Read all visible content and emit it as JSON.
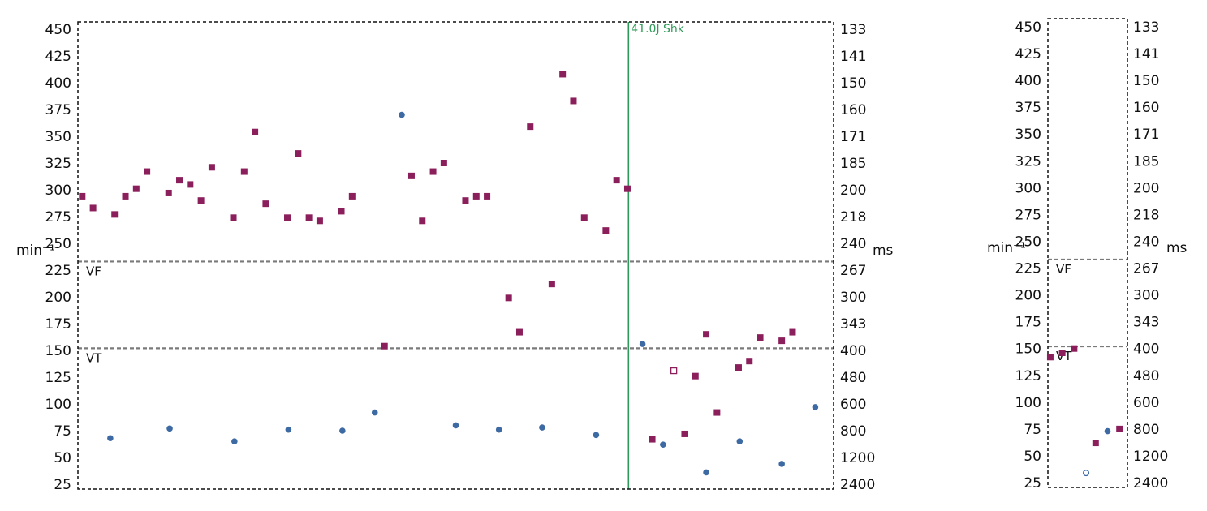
{
  "colors": {
    "vv": "#3d6aa3",
    "aa": "#8b1f5c",
    "shock": "#2e9a58",
    "zone": "#7a7a7a",
    "frame": "#111111"
  },
  "chart_data": [
    {
      "type": "scatter",
      "y_left_unit": "min⁻¹",
      "y_right_unit": "ms",
      "ylim": [
        20,
        456
      ],
      "y_left_ticks": [
        "450",
        "425",
        "400",
        "375",
        "350",
        "325",
        "300",
        "275",
        "250",
        "225",
        "200",
        "175",
        "150",
        "125",
        "100",
        "75",
        "50",
        "25"
      ],
      "y_right_ticks": [
        "133",
        "141",
        "150",
        "160",
        "171",
        "185",
        "200",
        "218",
        "240",
        "267",
        "300",
        "343",
        "400",
        "480",
        "600",
        "800",
        "1200",
        "2400"
      ],
      "zones": [
        {
          "label": "VF",
          "value": 233
        },
        {
          "label": "VT",
          "value": 152
        }
      ],
      "event": {
        "label": "41.0J Shk",
        "x": 50
      },
      "xlim": [
        -1,
        69
      ],
      "series": [
        {
          "marker": "circle",
          "color_key": "vv",
          "points": [
            {
              "x": 2,
              "y": 68
            },
            {
              "x": 7.5,
              "y": 77
            },
            {
              "x": 13.5,
              "y": 65
            },
            {
              "x": 18.5,
              "y": 76
            },
            {
              "x": 23.5,
              "y": 75
            },
            {
              "x": 26.5,
              "y": 92
            },
            {
              "x": 29,
              "y": 370
            },
            {
              "x": 34,
              "y": 80
            },
            {
              "x": 38,
              "y": 76
            },
            {
              "x": 42,
              "y": 78
            },
            {
              "x": 47,
              "y": 71
            },
            {
              "x": 51.3,
              "y": 156
            },
            {
              "x": 53.2,
              "y": 62
            },
            {
              "x": 57.2,
              "y": 36
            },
            {
              "x": 60.3,
              "y": 65
            },
            {
              "x": 64.2,
              "y": 44
            },
            {
              "x": 67.3,
              "y": 97
            }
          ]
        },
        {
          "marker": "square",
          "color_key": "aa",
          "points": [
            {
              "x": -0.6,
              "y": 294
            },
            {
              "x": 0.4,
              "y": 283
            },
            {
              "x": 2.4,
              "y": 277
            },
            {
              "x": 3.4,
              "y": 294
            },
            {
              "x": 4.4,
              "y": 301
            },
            {
              "x": 5.4,
              "y": 317
            },
            {
              "x": 7.4,
              "y": 297
            },
            {
              "x": 8.4,
              "y": 309
            },
            {
              "x": 9.4,
              "y": 305
            },
            {
              "x": 10.4,
              "y": 290
            },
            {
              "x": 11.4,
              "y": 321
            },
            {
              "x": 13.4,
              "y": 274
            },
            {
              "x": 14.4,
              "y": 317
            },
            {
              "x": 15.4,
              "y": 354
            },
            {
              "x": 16.4,
              "y": 287
            },
            {
              "x": 18.4,
              "y": 274
            },
            {
              "x": 19.4,
              "y": 334
            },
            {
              "x": 20.4,
              "y": 274
            },
            {
              "x": 21.4,
              "y": 271
            },
            {
              "x": 23.4,
              "y": 280
            },
            {
              "x": 24.4,
              "y": 294
            },
            {
              "x": 27.4,
              "y": 154
            },
            {
              "x": 29.9,
              "y": 313
            },
            {
              "x": 30.9,
              "y": 271
            },
            {
              "x": 31.9,
              "y": 317
            },
            {
              "x": 32.9,
              "y": 325
            },
            {
              "x": 34.9,
              "y": 290
            },
            {
              "x": 35.9,
              "y": 294
            },
            {
              "x": 36.9,
              "y": 294
            },
            {
              "x": 38.9,
              "y": 199
            },
            {
              "x": 39.9,
              "y": 167
            },
            {
              "x": 40.9,
              "y": 359
            },
            {
              "x": 42.9,
              "y": 212
            },
            {
              "x": 43.9,
              "y": 408
            },
            {
              "x": 44.9,
              "y": 383
            },
            {
              "x": 45.9,
              "y": 274
            },
            {
              "x": 47.9,
              "y": 262
            },
            {
              "x": 48.9,
              "y": 309
            },
            {
              "x": 49.9,
              "y": 301
            },
            {
              "x": 52.2,
              "y": 67
            },
            {
              "x": 55.2,
              "y": 72
            },
            {
              "x": 56.2,
              "y": 126
            },
            {
              "x": 57.2,
              "y": 165
            },
            {
              "x": 58.2,
              "y": 92
            },
            {
              "x": 60.2,
              "y": 134
            },
            {
              "x": 61.2,
              "y": 140
            },
            {
              "x": 62.2,
              "y": 162
            },
            {
              "x": 64.2,
              "y": 159
            },
            {
              "x": 65.2,
              "y": 167
            }
          ]
        },
        {
          "marker": "open-square",
          "color_key": "aa",
          "points": [
            {
              "x": 54.2,
              "y": 131
            }
          ]
        }
      ]
    },
    {
      "type": "scatter",
      "y_left_unit": "min⁻¹",
      "y_right_unit": "ms",
      "ylim": [
        20,
        456
      ],
      "y_left_ticks": [
        "450",
        "425",
        "400",
        "375",
        "350",
        "325",
        "300",
        "275",
        "250",
        "225",
        "200",
        "175",
        "150",
        "125",
        "100",
        "75",
        "50",
        "25"
      ],
      "y_right_ticks": [
        "133",
        "141",
        "150",
        "160",
        "171",
        "185",
        "200",
        "218",
        "240",
        "267",
        "300",
        "343",
        "400",
        "480",
        "600",
        "800",
        "1200",
        "2400"
      ],
      "zones": [
        {
          "label": "VF",
          "value": 233
        },
        {
          "label": "VT",
          "value": 152
        }
      ],
      "xlim": [
        0,
        100
      ],
      "series": [
        {
          "marker": "square",
          "color_key": "aa",
          "points": [
            {
              "x": 3,
              "y": 142
            },
            {
              "x": 18,
              "y": 146
            },
            {
              "x": 33,
              "y": 150
            },
            {
              "x": 60,
              "y": 62
            },
            {
              "x": 90,
              "y": 75
            }
          ]
        },
        {
          "marker": "circle",
          "color_key": "vv",
          "points": [
            {
              "x": 75,
              "y": 73
            }
          ]
        },
        {
          "marker": "open-circle",
          "color_key": "vv",
          "points": [
            {
              "x": 48,
              "y": 34
            }
          ]
        }
      ]
    }
  ]
}
